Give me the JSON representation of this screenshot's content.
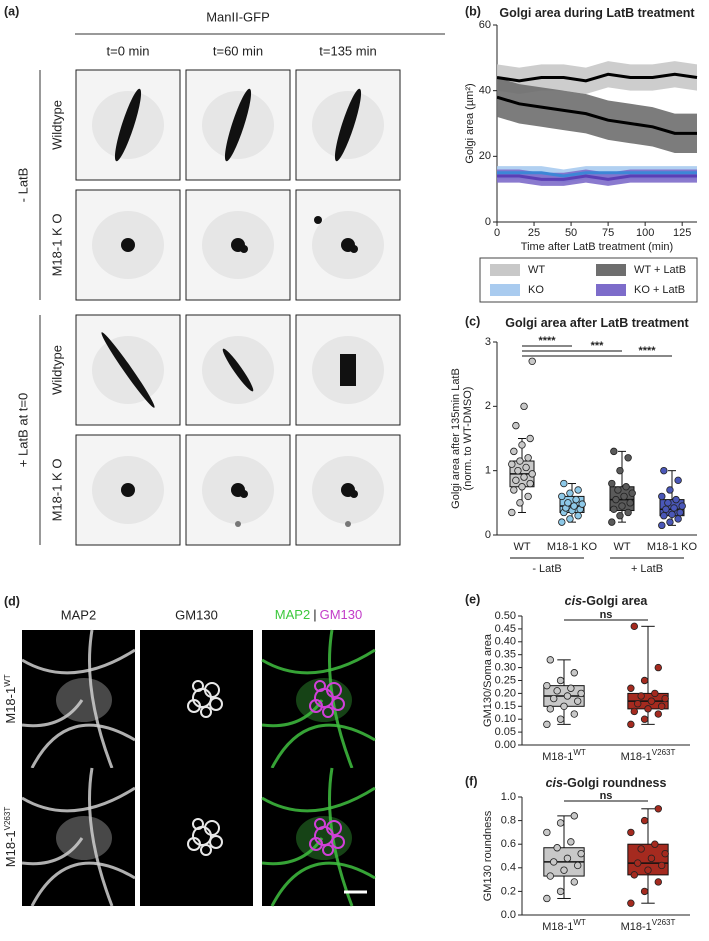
{
  "panel_a": {
    "label": "(a)",
    "title": "ManII-GFP",
    "columns": [
      "t=0 min",
      "t=60 min",
      "t=135 min"
    ],
    "groups": [
      "- LatB",
      "+ LatB at t=0"
    ],
    "rows": [
      "Wildtype",
      "M18-1 K O",
      "Wildtype",
      "M18-1 K O"
    ]
  },
  "panel_d": {
    "label": "(d)",
    "columns": [
      "MAP2",
      "GM130"
    ],
    "merge": [
      "MAP2",
      "|",
      "GM130"
    ],
    "rows": [
      {
        "base": "M18-1",
        "sup": "WT"
      },
      {
        "base": "M18-1",
        "sup": "V263T"
      }
    ]
  },
  "chart_data": [
    {
      "type": "line",
      "label": "(b)",
      "title": "Golgi area during LatB treatment",
      "xlabel": "Time after LatB treatment (min)",
      "ylabel": "Golgi area (µm²)",
      "x": [
        0,
        15,
        30,
        45,
        60,
        75,
        90,
        105,
        120,
        135
      ],
      "xlim": [
        0,
        135
      ],
      "xticks": [
        0,
        25,
        50,
        75,
        100,
        125
      ],
      "ylim": [
        0,
        60
      ],
      "yticks": [
        0,
        20,
        40,
        60
      ],
      "series": [
        {
          "name": "WT",
          "color": "#000000",
          "band_color": "#c8c8c8",
          "values": [
            44,
            43,
            44,
            44,
            43,
            45,
            44,
            44,
            45,
            44
          ],
          "band": [
            4,
            4,
            4,
            4,
            4,
            4,
            4,
            4,
            4,
            4
          ]
        },
        {
          "name": "KO",
          "color": "#3d86d6",
          "band_color": "#a9cbef",
          "values": [
            15,
            15,
            15,
            14,
            15,
            15,
            15,
            15,
            15,
            15
          ],
          "band": [
            2,
            2,
            2,
            2,
            2,
            2,
            2,
            2,
            2,
            2
          ]
        },
        {
          "name": "WT + LatB",
          "color": "#000000",
          "band_color": "#6e6e6e",
          "values": [
            38,
            36,
            35,
            34,
            33,
            31,
            30,
            29,
            27,
            27
          ],
          "band": [
            6,
            6,
            6,
            6,
            6,
            6,
            6,
            6,
            6,
            6
          ]
        },
        {
          "name": "KO + LatB",
          "color": "#5b3fb5",
          "band_color": "#7d6cca",
          "values": [
            14,
            14,
            13,
            13,
            14,
            13,
            14,
            14,
            14,
            14
          ],
          "band": [
            2,
            2,
            2,
            2,
            2,
            2,
            2,
            2,
            2,
            2
          ]
        }
      ]
    },
    {
      "type": "box",
      "label": "(c)",
      "title": "Golgi area after LatB treatment",
      "ylabel": [
        "Golgi area after 135min LatB",
        "(norm. to WT-DMSO)"
      ],
      "categories": [
        "WT",
        "M18-1 KO",
        "WT",
        "M18-1 KO"
      ],
      "colors": [
        "#c8c8c8",
        "#8ec9e8",
        "#5a5a5a",
        "#4a57b8"
      ],
      "ylim": [
        0,
        3
      ],
      "yticks": [
        0,
        1,
        2,
        3
      ],
      "min": [
        0.35,
        0.2,
        0.2,
        0.15
      ],
      "q1": [
        0.75,
        0.35,
        0.38,
        0.3
      ],
      "median": [
        0.95,
        0.45,
        0.55,
        0.4
      ],
      "q3": [
        1.15,
        0.6,
        0.75,
        0.55
      ],
      "max": [
        1.5,
        0.8,
        1.3,
        1.0
      ],
      "points": [
        [
          0.35,
          0.5,
          0.6,
          0.7,
          0.75,
          0.8,
          0.85,
          0.9,
          0.95,
          1.0,
          1.05,
          1.1,
          1.15,
          1.2,
          1.3,
          1.4,
          1.5,
          1.7,
          2.0,
          2.7
        ],
        [
          0.2,
          0.25,
          0.3,
          0.35,
          0.38,
          0.4,
          0.42,
          0.45,
          0.48,
          0.5,
          0.55,
          0.6,
          0.65,
          0.7,
          0.8
        ],
        [
          0.2,
          0.3,
          0.35,
          0.4,
          0.45,
          0.5,
          0.55,
          0.6,
          0.65,
          0.7,
          0.75,
          0.8,
          1.0,
          1.2,
          1.3
        ],
        [
          0.15,
          0.2,
          0.25,
          0.3,
          0.32,
          0.35,
          0.4,
          0.42,
          0.45,
          0.5,
          0.55,
          0.6,
          0.7,
          0.85,
          1.0
        ]
      ],
      "groups": [
        {
          "label": "- LatB",
          "span": [
            0,
            1
          ]
        },
        {
          "label": "+ LatB",
          "span": [
            2,
            3
          ]
        }
      ],
      "comparisons": [
        {
          "pair": [
            0,
            1
          ],
          "label": "****"
        },
        {
          "pair": [
            0,
            2
          ],
          "label": "***"
        },
        {
          "pair": [
            0,
            3
          ],
          "label": "****"
        }
      ]
    },
    {
      "type": "box",
      "label": "(e)",
      "title_italic": "cis",
      "title": "-Golgi area",
      "ylabel": [
        "GM130/Soma area"
      ],
      "categories": [
        {
          "base": "M18-1",
          "sup": "WT"
        },
        {
          "base": "M18-1",
          "sup": "V263T"
        }
      ],
      "colors": [
        "#c8c8c8",
        "#a52a1f"
      ],
      "ylim": [
        0,
        0.5
      ],
      "yticks": [
        {
          "value": 0,
          "label": "0.00"
        },
        {
          "value": 0.05,
          "label": "0.05"
        },
        {
          "value": 0.1,
          "label": "0.10"
        },
        {
          "value": 0.15,
          "label": "0.15"
        },
        {
          "value": 0.2,
          "label": "0.20"
        },
        {
          "value": 0.25,
          "label": "0.25"
        },
        {
          "value": 0.3,
          "label": "0.30"
        },
        {
          "value": 0.35,
          "label": "0.35"
        },
        {
          "value": 0.4,
          "label": "0.40"
        },
        {
          "value": 0.45,
          "label": "0.45"
        },
        {
          "value": 0.5,
          "label": "0.50"
        }
      ],
      "min": [
        0.08,
        0.08
      ],
      "q1": [
        0.15,
        0.14
      ],
      "median": [
        0.19,
        0.17
      ],
      "q3": [
        0.23,
        0.2
      ],
      "max": [
        0.33,
        0.46
      ],
      "points": [
        [
          0.08,
          0.1,
          0.12,
          0.14,
          0.15,
          0.17,
          0.18,
          0.19,
          0.2,
          0.21,
          0.22,
          0.23,
          0.25,
          0.28,
          0.33
        ],
        [
          0.08,
          0.1,
          0.12,
          0.13,
          0.14,
          0.15,
          0.16,
          0.17,
          0.18,
          0.19,
          0.2,
          0.22,
          0.25,
          0.3,
          0.46
        ]
      ],
      "comparisons": [
        {
          "pair": [
            0,
            1
          ],
          "label": "ns"
        }
      ]
    },
    {
      "type": "box",
      "label": "(f)",
      "title_italic": "cis",
      "title": "-Golgi roundness",
      "ylabel": [
        "GM130 roundness"
      ],
      "categories": [
        {
          "base": "M18-1",
          "sup": "WT"
        },
        {
          "base": "M18-1",
          "sup": "V263T"
        }
      ],
      "colors": [
        "#c8c8c8",
        "#a52a1f"
      ],
      "ylim": [
        0,
        1
      ],
      "yticks": [
        {
          "value": 0,
          "label": "0.0"
        },
        0.2,
        0.4,
        0.6,
        0.8,
        {
          "value": 1,
          "label": "1.0"
        }
      ],
      "min": [
        0.14,
        0.1
      ],
      "q1": [
        0.33,
        0.34
      ],
      "median": [
        0.45,
        0.44
      ],
      "q3": [
        0.57,
        0.6
      ],
      "max": [
        0.84,
        0.9
      ],
      "points": [
        [
          0.14,
          0.2,
          0.28,
          0.33,
          0.38,
          0.42,
          0.45,
          0.48,
          0.52,
          0.57,
          0.62,
          0.7,
          0.78,
          0.84
        ],
        [
          0.1,
          0.2,
          0.28,
          0.34,
          0.38,
          0.42,
          0.44,
          0.48,
          0.52,
          0.56,
          0.6,
          0.7,
          0.8,
          0.9
        ]
      ],
      "comparisons": [
        {
          "pair": [
            0,
            1
          ],
          "label": "ns"
        }
      ]
    }
  ]
}
